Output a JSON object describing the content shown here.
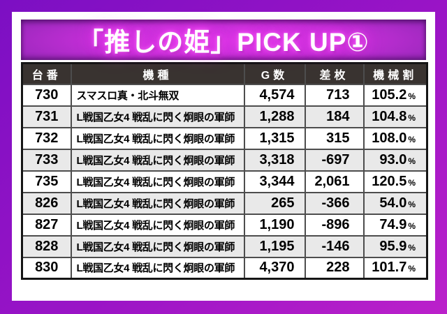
{
  "title": "「推しの姫」PICK UP①",
  "labels": {
    "percent": "%"
  },
  "colors": {
    "background_top": "#7c0fc3",
    "background_bottom": "#bb21ca",
    "title_bar_center": "#d936e4",
    "title_bar_edge": "#6e1b94",
    "title_glow": "#f546f5",
    "header_bg": "#393330",
    "row_alt_bg": "#e9e9e9",
    "frame_bg": "#ffffff"
  },
  "table": {
    "headers": [
      "台番",
      "機種",
      "G数",
      "差枚",
      "機械割"
    ],
    "rows": [
      {
        "dai": "730",
        "kishu": "スマスロ真・北斗無双",
        "g": "4,574",
        "sa": "713",
        "rate": "105.2"
      },
      {
        "dai": "731",
        "kishu": "L戦国乙女4 戦乱に閃く炯眼の軍師",
        "g": "1,288",
        "sa": "184",
        "rate": "104.8"
      },
      {
        "dai": "732",
        "kishu": "L戦国乙女4 戦乱に閃く炯眼の軍師",
        "g": "1,315",
        "sa": "315",
        "rate": "108.0"
      },
      {
        "dai": "733",
        "kishu": "L戦国乙女4 戦乱に閃く炯眼の軍師",
        "g": "3,318",
        "sa": "-697",
        "rate": "93.0"
      },
      {
        "dai": "735",
        "kishu": "L戦国乙女4 戦乱に閃く炯眼の軍師",
        "g": "3,344",
        "sa": "2,061",
        "rate": "120.5"
      },
      {
        "dai": "826",
        "kishu": "L戦国乙女4 戦乱に閃く炯眼の軍師",
        "g": "265",
        "sa": "-366",
        "rate": "54.0"
      },
      {
        "dai": "827",
        "kishu": "L戦国乙女4 戦乱に閃く炯眼の軍師",
        "g": "1,190",
        "sa": "-896",
        "rate": "74.9"
      },
      {
        "dai": "828",
        "kishu": "L戦国乙女4 戦乱に閃く炯眼の軍師",
        "g": "1,195",
        "sa": "-146",
        "rate": "95.9"
      },
      {
        "dai": "830",
        "kishu": "L戦国乙女4 戦乱に閃く炯眼の軍師",
        "g": "4,370",
        "sa": "228",
        "rate": "101.7"
      }
    ]
  }
}
